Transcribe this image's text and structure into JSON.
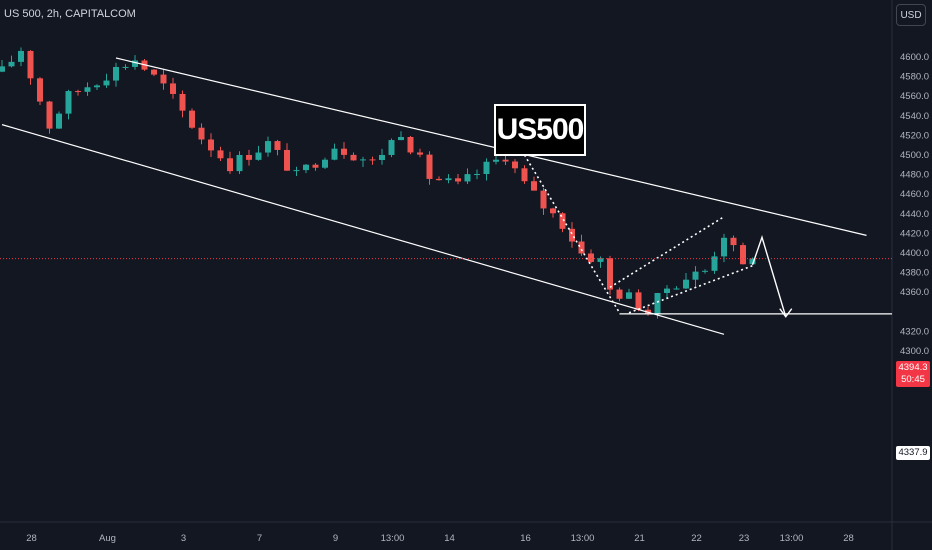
{
  "header": {
    "symbol_title": "US 500, 2h, CAPITALCOM",
    "currency_button": "USD"
  },
  "banner": {
    "text": "US500"
  },
  "price_axis": {
    "last_price": "4394.3",
    "countdown": "50:45",
    "level_label": "4337.9"
  },
  "colors": {
    "up": "#26a69a",
    "down": "#ef5350",
    "background": "#131722",
    "drawing": "#ffffff",
    "last_price": "#f23645"
  },
  "chart_data": {
    "type": "candlestick",
    "title": "US 500, 2h, CAPITALCOM",
    "ylim": [
      4290,
      4625
    ],
    "y_ticks": [
      4600,
      4580,
      4560,
      4540,
      4520,
      4500,
      4480,
      4460,
      4440,
      4420,
      4400,
      4380,
      4360,
      4320,
      4300
    ],
    "x_ticks": [
      {
        "label": "28",
        "i": 3
      },
      {
        "label": "Aug",
        "i": 11
      },
      {
        "label": "3",
        "i": 19
      },
      {
        "label": "7",
        "i": 27
      },
      {
        "label": "9",
        "i": 35
      },
      {
        "label": "13:00",
        "i": 41
      },
      {
        "label": "14",
        "i": 47
      },
      {
        "label": "16",
        "i": 55
      },
      {
        "label": "13:00",
        "i": 61
      },
      {
        "label": "21",
        "i": 67
      },
      {
        "label": "22",
        "i": 73
      },
      {
        "label": "23",
        "i": 78
      },
      {
        "label": "13:00",
        "i": 83
      },
      {
        "label": "28",
        "i": 89
      }
    ],
    "candles_count": 80,
    "path_x": [
      0,
      2,
      5,
      7,
      12,
      14,
      17,
      21,
      24,
      28,
      31,
      35,
      39,
      42,
      45,
      48,
      51,
      53,
      55,
      57,
      59,
      61,
      63,
      64,
      66,
      68,
      70,
      72,
      74,
      76,
      78,
      79
    ],
    "path_y": [
      4585,
      4608,
      4530,
      4560,
      4588,
      4598,
      4570,
      4518,
      4490,
      4512,
      4478,
      4510,
      4492,
      4525,
      4478,
      4468,
      4488,
      4500,
      4470,
      4448,
      4430,
      4400,
      4392,
      4362,
      4355,
      4340,
      4365,
      4375,
      4382,
      4420,
      4385,
      4394.3
    ],
    "last_price": 4394.3,
    "horizontal_level": 4337.9,
    "drawings": {
      "upper_channel": [
        [
          12,
          4599
        ],
        [
          91,
          4418
        ]
      ],
      "lower_channel": [
        [
          0,
          4531
        ],
        [
          76,
          4317
        ]
      ],
      "dotted_drop": [
        [
          55,
          4500
        ],
        [
          65,
          4339
        ]
      ],
      "dotted_flag_upper": [
        [
          64,
          4365
        ],
        [
          76,
          4437
        ]
      ],
      "dotted_flag_lower": [
        [
          66,
          4339
        ],
        [
          79,
          4387
        ]
      ],
      "forecast_arrow": [
        [
          79,
          4388
        ],
        [
          80,
          4416
        ],
        [
          82.5,
          4335
        ]
      ]
    }
  }
}
